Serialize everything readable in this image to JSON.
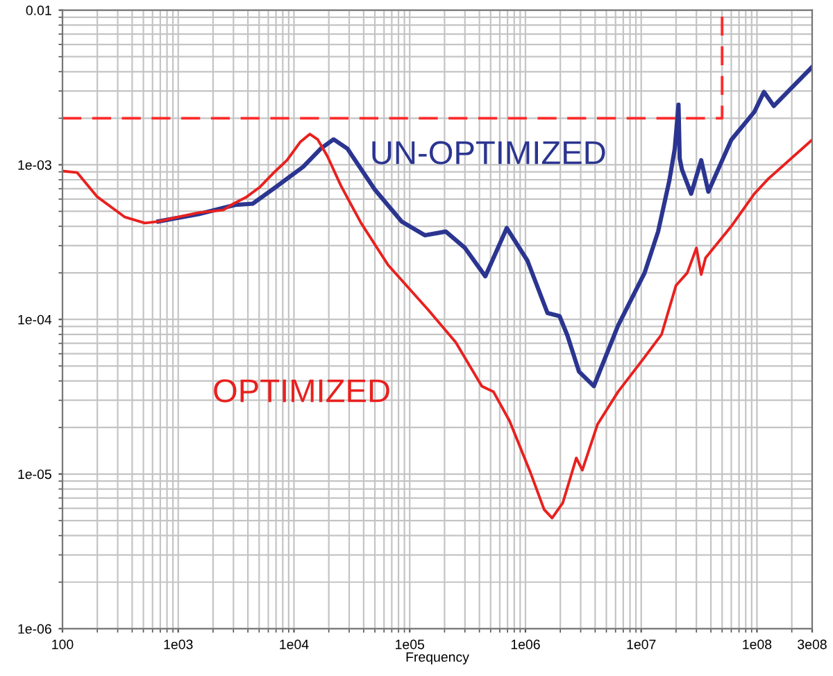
{
  "chart_data": {
    "type": "line",
    "xlabel": "Frequency",
    "log": "xy",
    "grid": true,
    "legend": false,
    "marker": "none",
    "xlim": [
      100,
      300000000
    ],
    "ylim": [
      1e-06,
      0.01
    ],
    "xticks": [
      {
        "value": 100,
        "label": "100"
      },
      {
        "value": 1000,
        "label": "1e03"
      },
      {
        "value": 10000,
        "label": "1e04"
      },
      {
        "value": 100000,
        "label": "1e05"
      },
      {
        "value": 1000000,
        "label": "1e06"
      },
      {
        "value": 10000000,
        "label": "1e07"
      },
      {
        "value": 100000000,
        "label": "1e08"
      },
      {
        "value": 300000000,
        "label": "3e08"
      }
    ],
    "yticks": [
      {
        "value": 1e-06,
        "label": "1e-06"
      },
      {
        "value": 1e-05,
        "label": "1e-05"
      },
      {
        "value": 0.0001,
        "label": "1e-04"
      },
      {
        "value": 0.001,
        "label": "1e-03"
      },
      {
        "value": 0.01,
        "label": "0.01"
      }
    ],
    "series": [
      {
        "color": "#ff2a2a",
        "line_style": "dashed",
        "x": [
          100,
          50000000,
          50000000
        ],
        "values": [
          0.002,
          0.002,
          0.01
        ]
      },
      {
        "name": "UN-OPTIMIZED",
        "color": "#2b3590",
        "line_style": "solid",
        "x": [
          675,
          1500,
          3100,
          4400,
          7000,
          12000,
          17000,
          22000,
          29000,
          50000,
          85000,
          135000,
          205000,
          300000,
          450000,
          690000,
          1040000,
          1550000,
          1970000,
          2300000,
          2900000,
          3900000,
          6300000,
          10700000,
          14000000,
          17500000,
          19500000,
          21000000,
          21500000,
          22500000,
          27000000,
          33000000,
          38000000,
          60000000,
          95000000,
          115000000,
          140000000,
          300000000
        ],
        "values": [
          0.00043,
          0.00048,
          0.00055,
          0.00056,
          0.00072,
          0.00097,
          0.00127,
          0.00146,
          0.00127,
          0.00069,
          0.00043,
          0.00035,
          0.00037,
          0.00029,
          0.00019,
          0.00039,
          0.00024,
          0.00011,
          0.000105,
          7.9e-05,
          4.6e-05,
          3.7e-05,
          9.1e-05,
          0.0002,
          0.00037,
          0.00079,
          0.00127,
          0.00245,
          0.0011,
          0.00093,
          0.00065,
          0.00107,
          0.00067,
          0.00145,
          0.0022,
          0.00296,
          0.0024,
          0.0043
        ]
      },
      {
        "name": "OPTIMIZED",
        "color": "#e8211f",
        "line_style": "solid",
        "x": [
          100,
          134,
          200,
          344,
          515,
          675,
          1000,
          1500,
          2450,
          3000,
          3900,
          5100,
          6600,
          8700,
          11300,
          13700,
          16000,
          19400,
          25500,
          38000,
          65000,
          145000,
          250000,
          420000,
          530000,
          730000,
          1100000,
          1450000,
          1700000,
          2100000,
          2750000,
          3100000,
          4200000,
          6300000,
          10700000,
          15000000,
          20000000,
          25000000,
          30000000,
          33000000,
          36000000,
          60000000,
          95000000,
          125000000,
          300000000
        ],
        "values": [
          0.00091,
          0.00089,
          0.00062,
          0.00046,
          0.00042,
          0.00043,
          0.00046,
          0.00049,
          0.00051,
          0.00056,
          0.00062,
          0.00072,
          0.00088,
          0.00107,
          0.0014,
          0.00158,
          0.00146,
          0.00114,
          0.00073,
          0.00042,
          0.000225,
          0.000115,
          7.1e-05,
          3.7e-05,
          3.4e-05,
          2.2e-05,
          1.03e-05,
          5.9e-06,
          5.2e-06,
          6.5e-06,
          1.27e-05,
          1.06e-05,
          2.1e-05,
          3.4e-05,
          5.7e-05,
          8e-05,
          0.000166,
          0.0002,
          0.00029,
          0.000195,
          0.00025,
          0.0004,
          0.00065,
          0.00081,
          0.00145
        ]
      }
    ]
  }
}
